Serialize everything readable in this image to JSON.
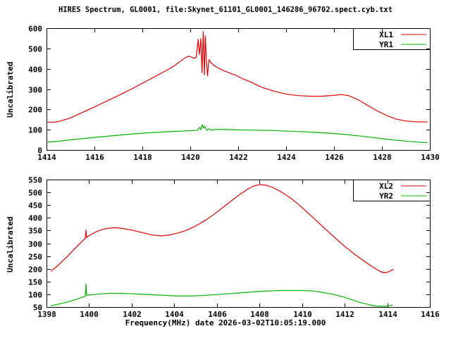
{
  "title": "HIRES Spectrum, GL0001, file:Skynet_61101_GL0001_146286_96702.spect.cyb.txt",
  "xlabel": "Frequency(MHz) date 2026-03-02T10:05:19.000",
  "colors": {
    "series_red": "#e60000",
    "series_green": "#00b400",
    "axis": "#000000",
    "background": "#ffffff"
  },
  "chart_data": [
    {
      "type": "line",
      "panel": "top",
      "ylabel": "Uncalibrated",
      "xlim": [
        1414,
        1430
      ],
      "ylim": [
        0,
        600
      ],
      "xticks": [
        1414,
        1416,
        1418,
        1420,
        1422,
        1424,
        1426,
        1428,
        1430
      ],
      "yticks": [
        0,
        100,
        200,
        300,
        400,
        500,
        600
      ],
      "grid": false,
      "legend_position": "top-right-boxed",
      "series": [
        {
          "name": "XL1",
          "color": "#e60000",
          "points": [
            [
              1414.0,
              138
            ],
            [
              1414.2,
              136
            ],
            [
              1414.5,
              140
            ],
            [
              1415.0,
              158
            ],
            [
              1415.5,
              185
            ],
            [
              1416.0,
              212
            ],
            [
              1416.5,
              240
            ],
            [
              1417.0,
              268
            ],
            [
              1417.5,
              298
            ],
            [
              1418.0,
              328
            ],
            [
              1418.5,
              360
            ],
            [
              1419.0,
              392
            ],
            [
              1419.3,
              412
            ],
            [
              1419.6,
              438
            ],
            [
              1419.8,
              455
            ],
            [
              1419.95,
              462
            ],
            [
              1420.05,
              457
            ],
            [
              1420.15,
              452
            ],
            [
              1420.25,
              456
            ],
            [
              1420.33,
              545
            ],
            [
              1420.38,
              470
            ],
            [
              1420.44,
              548
            ],
            [
              1420.49,
              380
            ],
            [
              1420.54,
              583
            ],
            [
              1420.59,
              370
            ],
            [
              1420.63,
              560
            ],
            [
              1420.68,
              430
            ],
            [
              1420.72,
              365
            ],
            [
              1420.78,
              445
            ],
            [
              1420.85,
              432
            ],
            [
              1420.95,
              420
            ],
            [
              1421.1,
              408
            ],
            [
              1421.3,
              396
            ],
            [
              1421.6,
              381
            ],
            [
              1421.9,
              368
            ],
            [
              1422.2,
              350
            ],
            [
              1422.5,
              336
            ],
            [
              1423.0,
              308
            ],
            [
              1423.5,
              290
            ],
            [
              1424.0,
              275
            ],
            [
              1424.5,
              268
            ],
            [
              1425.0,
              265
            ],
            [
              1425.5,
              265
            ],
            [
              1426.0,
              269
            ],
            [
              1426.3,
              273
            ],
            [
              1426.6,
              268
            ],
            [
              1427.0,
              248
            ],
            [
              1427.4,
              220
            ],
            [
              1427.8,
              193
            ],
            [
              1428.2,
              170
            ],
            [
              1428.6,
              152
            ],
            [
              1429.0,
              143
            ],
            [
              1429.4,
              139
            ],
            [
              1429.9,
              138
            ]
          ]
        },
        {
          "name": "YR1",
          "color": "#00b400",
          "points": [
            [
              1414.0,
              38
            ],
            [
              1414.5,
              43
            ],
            [
              1415.0,
              50
            ],
            [
              1415.5,
              56
            ],
            [
              1416.0,
              62
            ],
            [
              1417.0,
              73
            ],
            [
              1418.0,
              83
            ],
            [
              1419.0,
              90
            ],
            [
              1419.6,
              93
            ],
            [
              1420.0,
              95
            ],
            [
              1420.3,
              98
            ],
            [
              1420.4,
              112
            ],
            [
              1420.45,
              100
            ],
            [
              1420.5,
              125
            ],
            [
              1420.55,
              108
            ],
            [
              1420.6,
              118
            ],
            [
              1420.7,
              96
            ],
            [
              1420.8,
              104
            ],
            [
              1420.9,
              97
            ],
            [
              1421.0,
              101
            ],
            [
              1421.5,
              101
            ],
            [
              1422.0,
              99
            ],
            [
              1422.5,
              98
            ],
            [
              1423.0,
              97
            ],
            [
              1423.5,
              96
            ],
            [
              1424.0,
              93
            ],
            [
              1424.5,
              91
            ],
            [
              1425.0,
              88
            ],
            [
              1425.5,
              85
            ],
            [
              1426.0,
              81
            ],
            [
              1426.5,
              76
            ],
            [
              1427.0,
              70
            ],
            [
              1427.5,
              63
            ],
            [
              1428.0,
              56
            ],
            [
              1428.5,
              49
            ],
            [
              1429.0,
              44
            ],
            [
              1429.5,
              39
            ],
            [
              1429.9,
              36
            ]
          ]
        }
      ]
    },
    {
      "type": "line",
      "panel": "bottom",
      "ylabel": "Uncalibrated",
      "xlim": [
        1398,
        1416
      ],
      "ylim": [
        50,
        550
      ],
      "xticks": [
        1398,
        1400,
        1402,
        1404,
        1406,
        1408,
        1410,
        1412,
        1414,
        1416
      ],
      "yticks": [
        50,
        100,
        150,
        200,
        250,
        300,
        350,
        400,
        450,
        500,
        550
      ],
      "grid": false,
      "legend_position": "top-right-boxed",
      "series": [
        {
          "name": "XL2",
          "color": "#e60000",
          "points": [
            [
              1398.2,
              190
            ],
            [
              1398.5,
              210
            ],
            [
              1399.0,
              250
            ],
            [
              1399.4,
              285
            ],
            [
              1399.7,
              310
            ],
            [
              1399.82,
              320
            ],
            [
              1399.85,
              352
            ],
            [
              1399.88,
              322
            ],
            [
              1400.0,
              330
            ],
            [
              1400.3,
              344
            ],
            [
              1400.6,
              354
            ],
            [
              1400.9,
              359
            ],
            [
              1401.2,
              361
            ],
            [
              1401.5,
              359
            ],
            [
              1402.0,
              352
            ],
            [
              1402.5,
              342
            ],
            [
              1403.0,
              332
            ],
            [
              1403.4,
              329
            ],
            [
              1403.8,
              333
            ],
            [
              1404.2,
              341
            ],
            [
              1404.6,
              352
            ],
            [
              1405.0,
              368
            ],
            [
              1405.5,
              392
            ],
            [
              1406.0,
              422
            ],
            [
              1406.5,
              455
            ],
            [
              1407.0,
              487
            ],
            [
              1407.4,
              510
            ],
            [
              1407.7,
              524
            ],
            [
              1408.0,
              530
            ],
            [
              1408.3,
              528
            ],
            [
              1408.6,
              520
            ],
            [
              1409.0,
              503
            ],
            [
              1409.5,
              475
            ],
            [
              1410.0,
              440
            ],
            [
              1410.5,
              402
            ],
            [
              1411.0,
              363
            ],
            [
              1411.5,
              325
            ],
            [
              1412.0,
              288
            ],
            [
              1412.5,
              255
            ],
            [
              1413.0,
              225
            ],
            [
              1413.4,
              203
            ],
            [
              1413.7,
              188
            ],
            [
              1413.9,
              184
            ],
            [
              1414.1,
              190
            ],
            [
              1414.3,
              198
            ]
          ]
        },
        {
          "name": "YR2",
          "color": "#00b400",
          "points": [
            [
              1398.2,
              55
            ],
            [
              1398.6,
              62
            ],
            [
              1399.0,
              70
            ],
            [
              1399.4,
              80
            ],
            [
              1399.7,
              89
            ],
            [
              1399.82,
              92
            ],
            [
              1399.85,
              140
            ],
            [
              1399.88,
              96
            ],
            [
              1400.2,
              99
            ],
            [
              1400.6,
              102
            ],
            [
              1401.0,
              104
            ],
            [
              1401.5,
              104
            ],
            [
              1402.0,
              102
            ],
            [
              1402.5,
              100
            ],
            [
              1403.0,
              98
            ],
            [
              1403.5,
              96
            ],
            [
              1404.0,
              94
            ],
            [
              1404.5,
              93
            ],
            [
              1405.0,
              94
            ],
            [
              1405.5,
              96
            ],
            [
              1406.0,
              99
            ],
            [
              1406.5,
              102
            ],
            [
              1407.0,
              105
            ],
            [
              1407.5,
              108
            ],
            [
              1408.0,
              111
            ],
            [
              1408.5,
              113
            ],
            [
              1409.0,
              115
            ],
            [
              1409.5,
              115
            ],
            [
              1410.0,
              115
            ],
            [
              1410.5,
              113
            ],
            [
              1411.0,
              107
            ],
            [
              1411.5,
              99
            ],
            [
              1412.0,
              88
            ],
            [
              1412.4,
              77
            ],
            [
              1412.8,
              66
            ],
            [
              1413.2,
              58
            ],
            [
              1413.5,
              54
            ],
            [
              1414.0,
              53
            ],
            [
              1414.25,
              58
            ]
          ]
        }
      ]
    }
  ]
}
